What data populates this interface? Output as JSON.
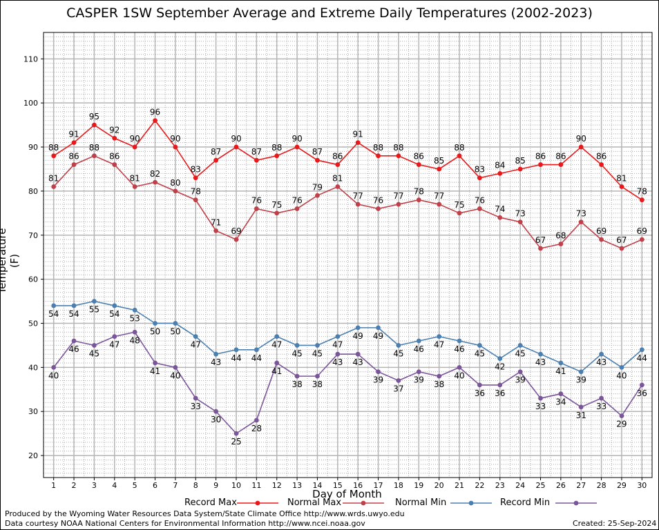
{
  "chart_data": {
    "type": "line",
    "title": "CASPER 1SW September Average and Extreme Daily Temperatures (2002-2023)",
    "xlabel": "Day of Month",
    "ylabel": "Temperature (F)",
    "ylim": [
      15,
      116
    ],
    "xlim": [
      0.5,
      30.5
    ],
    "yticks": [
      20,
      30,
      40,
      50,
      60,
      70,
      80,
      90,
      100,
      110
    ],
    "x": [
      1,
      2,
      3,
      4,
      5,
      6,
      7,
      8,
      9,
      10,
      11,
      12,
      13,
      14,
      15,
      16,
      17,
      18,
      19,
      20,
      21,
      22,
      23,
      24,
      25,
      26,
      27,
      28,
      29,
      30
    ],
    "grid": true,
    "legend_position": "bottom",
    "series": [
      {
        "name": "Record Max",
        "color": "#e8191a",
        "label_side": "above",
        "values": [
          88,
          91,
          95,
          92,
          90,
          96,
          90,
          83,
          87,
          90,
          87,
          88,
          90,
          87,
          86,
          91,
          88,
          88,
          86,
          85,
          88,
          83,
          84,
          85,
          86,
          86,
          90,
          86,
          81,
          78
        ]
      },
      {
        "name": "Normal Max",
        "color": "#c0404a",
        "label_side": "above",
        "values": [
          81,
          86,
          88,
          86,
          81,
          82,
          80,
          78,
          71,
          69,
          76,
          75,
          76,
          79,
          81,
          77,
          76,
          77,
          78,
          77,
          75,
          76,
          74,
          73,
          67,
          68,
          73,
          69,
          67,
          69
        ]
      },
      {
        "name": "Normal Min",
        "color": "#4a7fb0",
        "label_side": "below",
        "values": [
          54,
          54,
          55,
          54,
          53,
          50,
          50,
          47,
          43,
          44,
          44,
          47,
          45,
          45,
          47,
          49,
          49,
          45,
          46,
          47,
          46,
          45,
          42,
          45,
          43,
          41,
          39,
          43,
          40,
          44
        ]
      },
      {
        "name": "Record Min",
        "color": "#7b559a",
        "label_side": "below",
        "values": [
          40,
          46,
          45,
          47,
          48,
          41,
          40,
          33,
          30,
          25,
          28,
          41,
          38,
          38,
          43,
          43,
          39,
          37,
          39,
          38,
          40,
          36,
          36,
          39,
          33,
          34,
          31,
          33,
          29,
          36
        ]
      }
    ]
  },
  "footer": {
    "produced_by": "Produced by the Wyoming Water Resources Data System/State Climate Office http://www.wrds.uwyo.edu",
    "courtesy": "Data courtesy NOAA National Centers for Environmental Information http://www.ncei.noaa.gov",
    "created": "Created:  25-Sep-2024"
  }
}
